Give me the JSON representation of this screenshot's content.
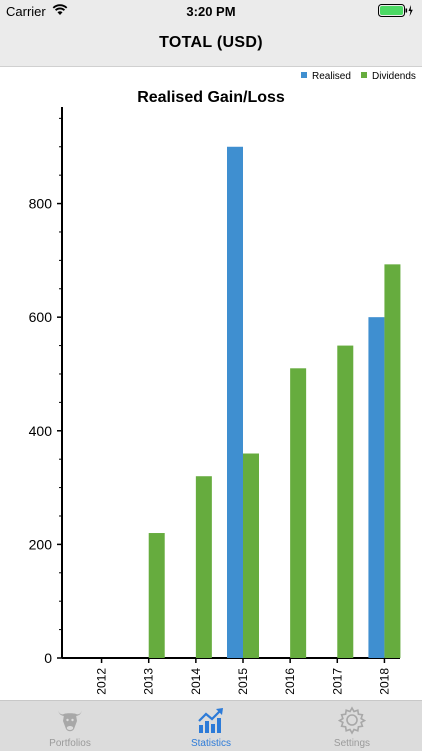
{
  "status_bar": {
    "carrier": "Carrier",
    "time": "3:20 PM"
  },
  "nav": {
    "title": "TOTAL (USD)"
  },
  "chart_data": {
    "type": "bar",
    "title": "Realised Gain/Loss",
    "categories": [
      "2012",
      "2013",
      "2014",
      "2015",
      "2016",
      "2017",
      "2018"
    ],
    "series": [
      {
        "name": "Realised",
        "color": "#3f8fd0",
        "values": [
          0,
          0,
          0,
          900,
          0,
          0,
          600
        ]
      },
      {
        "name": "Dividends",
        "color": "#66ac3e",
        "values": [
          0,
          220,
          320,
          360,
          510,
          550,
          693
        ]
      }
    ],
    "ylim": [
      0,
      970
    ],
    "yticks": [
      0,
      200,
      400,
      600,
      800
    ],
    "ytick_labels": [
      "0",
      "200",
      "400",
      "600",
      "800"
    ],
    "legend": "top-right",
    "grid": false
  },
  "tabs": [
    {
      "label": "Portfolios",
      "icon": "bull-icon",
      "active": false
    },
    {
      "label": "Statistics",
      "icon": "chart-icon",
      "active": true
    },
    {
      "label": "Settings",
      "icon": "gear-icon",
      "active": false
    }
  ],
  "colors": {
    "active_tab": "#2d7bd8",
    "inactive_tab": "#9a9a9a"
  }
}
